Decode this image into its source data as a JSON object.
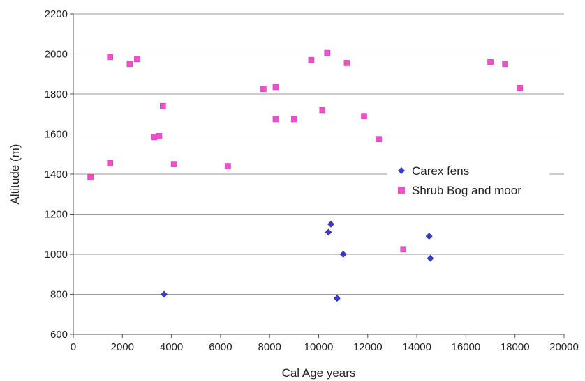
{
  "chart_data": {
    "type": "scatter",
    "title": "",
    "xlabel": "Cal Age years",
    "ylabel": "Altitude (m)",
    "xlim": [
      0,
      20000
    ],
    "ylim": [
      600,
      2200
    ],
    "x_ticks": [
      "0",
      "2000",
      "4000",
      "6000",
      "8000",
      "10000",
      "12000",
      "14000",
      "16000",
      "18000",
      "20000"
    ],
    "y_ticks": [
      "600",
      "800",
      "1000",
      "1200",
      "1400",
      "1600",
      "1800",
      "2000",
      "2200"
    ],
    "grid": "horizontal",
    "legend_position": "right",
    "series": [
      {
        "name": "Carex fens",
        "marker": "diamond",
        "color": "#3a3acc",
        "points": [
          [
            3700,
            800
          ],
          [
            10400,
            1110
          ],
          [
            10500,
            1150
          ],
          [
            11000,
            1000
          ],
          [
            10750,
            780
          ],
          [
            14500,
            1090
          ],
          [
            14550,
            980
          ]
        ]
      },
      {
        "name": "Shrub Bog and moor",
        "marker": "square",
        "color": "#f050c8",
        "points": [
          [
            700,
            1385
          ],
          [
            1500,
            1985
          ],
          [
            1500,
            1455
          ],
          [
            2300,
            1950
          ],
          [
            2600,
            1975
          ],
          [
            3300,
            1585
          ],
          [
            3500,
            1590
          ],
          [
            3650,
            1740
          ],
          [
            4100,
            1450
          ],
          [
            6300,
            1440
          ],
          [
            7750,
            1825
          ],
          [
            8250,
            1835
          ],
          [
            8250,
            1675
          ],
          [
            9000,
            1675
          ],
          [
            9700,
            1970
          ],
          [
            10150,
            1720
          ],
          [
            10350,
            2005
          ],
          [
            11150,
            1955
          ],
          [
            11850,
            1690
          ],
          [
            12450,
            1575
          ],
          [
            13450,
            1025
          ],
          [
            17000,
            1960
          ],
          [
            17600,
            1950
          ],
          [
            18200,
            1830
          ]
        ]
      }
    ]
  }
}
